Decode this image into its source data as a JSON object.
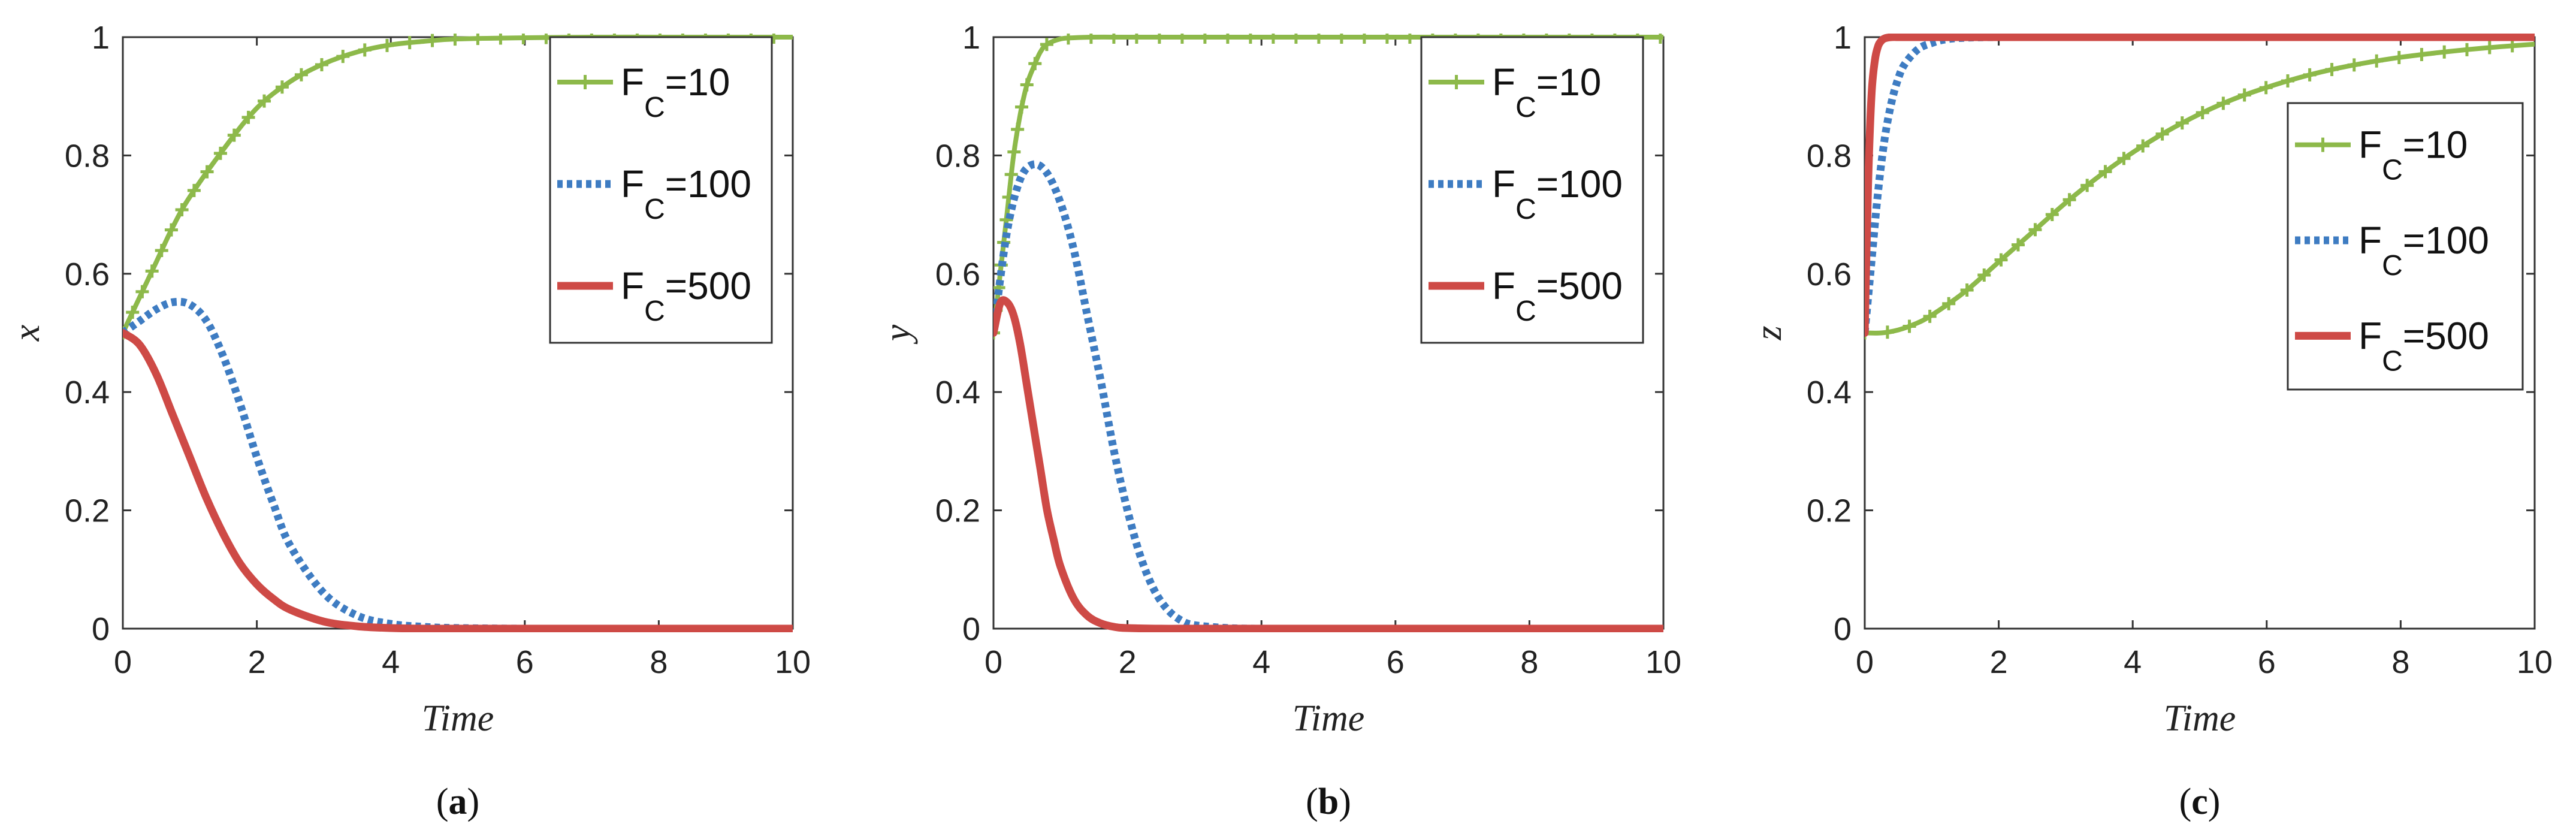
{
  "colors": {
    "green": "#8DB94A",
    "blue": "#3E7CC2",
    "red": "#CE4A46",
    "axis": "#333333",
    "background": "#ffffff"
  },
  "legend_entries": [
    {
      "prefix": "F",
      "subscript": "C",
      "suffix": "=10",
      "style": "solid-plus",
      "color": "#8DB94A"
    },
    {
      "prefix": "F",
      "subscript": "C",
      "suffix": "=100",
      "style": "dotted",
      "color": "#3E7CC2"
    },
    {
      "prefix": "F",
      "subscript": "C",
      "suffix": "=500",
      "style": "solid-thick",
      "color": "#CE4A46"
    }
  ],
  "chart_data": [
    {
      "type": "line",
      "panel_label": "a",
      "xlabel": "Time",
      "ylabel": "x",
      "xlim": [
        0,
        10
      ],
      "ylim": [
        0,
        1
      ],
      "xticks": [
        "0",
        "2",
        "4",
        "6",
        "8",
        "10"
      ],
      "yticks": [
        "0",
        "0.2",
        "0.4",
        "0.6",
        "0.8",
        "1"
      ],
      "legend_position": "top-right",
      "series": [
        {
          "name": "F_C=10",
          "x": [
            0,
            0.25,
            0.5,
            0.75,
            1,
            1.5,
            2,
            2.5,
            3,
            3.5,
            4,
            4.5,
            5,
            6,
            7,
            8,
            9,
            10
          ],
          "y": [
            0.5,
            0.56,
            0.62,
            0.68,
            0.73,
            0.81,
            0.88,
            0.925,
            0.955,
            0.975,
            0.987,
            0.993,
            0.997,
            0.999,
            1,
            1,
            1,
            1
          ]
        },
        {
          "name": "F_C=100",
          "x": [
            0,
            0.25,
            0.5,
            0.75,
            1,
            1.25,
            1.5,
            1.75,
            2,
            2.25,
            2.5,
            3,
            3.5,
            4,
            4.5,
            5,
            6,
            7,
            8,
            9,
            10
          ],
          "y": [
            0.5,
            0.52,
            0.54,
            0.552,
            0.548,
            0.52,
            0.46,
            0.38,
            0.29,
            0.21,
            0.14,
            0.06,
            0.022,
            0.008,
            0.003,
            0.001,
            0,
            0,
            0,
            0,
            0
          ]
        },
        {
          "name": "F_C=500",
          "x": [
            0,
            0.25,
            0.5,
            0.75,
            1,
            1.25,
            1.5,
            1.75,
            2,
            2.25,
            2.5,
            3,
            3.5,
            4,
            4.5,
            5,
            6,
            7,
            8,
            9,
            10
          ],
          "y": [
            0.5,
            0.48,
            0.43,
            0.36,
            0.29,
            0.22,
            0.16,
            0.11,
            0.075,
            0.05,
            0.032,
            0.012,
            0.004,
            0.001,
            0,
            0,
            0,
            0,
            0,
            0,
            0
          ]
        }
      ]
    },
    {
      "type": "line",
      "panel_label": "b",
      "xlabel": "Time",
      "ylabel": "y",
      "xlim": [
        0,
        10
      ],
      "ylim": [
        0,
        1
      ],
      "xticks": [
        "0",
        "2",
        "4",
        "6",
        "8",
        "10"
      ],
      "yticks": [
        "0",
        "0.2",
        "0.4",
        "0.6",
        "0.8",
        "1"
      ],
      "legend_position": "top-right",
      "series": [
        {
          "name": "F_C=10",
          "x": [
            0,
            0.1,
            0.2,
            0.3,
            0.4,
            0.5,
            0.6,
            0.7,
            0.8,
            1,
            1.2,
            1.5,
            2,
            3,
            4,
            5,
            6,
            7,
            8,
            9,
            10
          ],
          "y": [
            0.5,
            0.6,
            0.7,
            0.8,
            0.87,
            0.92,
            0.95,
            0.975,
            0.988,
            0.997,
            0.999,
            1,
            1,
            1,
            1,
            1,
            1,
            1,
            1,
            1,
            1
          ]
        },
        {
          "name": "F_C=100",
          "x": [
            0,
            0.2,
            0.4,
            0.6,
            0.8,
            1,
            1.2,
            1.4,
            1.6,
            1.8,
            2,
            2.2,
            2.4,
            2.6,
            2.8,
            3,
            3.5,
            4,
            5,
            6,
            8,
            10
          ],
          "y": [
            0.5,
            0.67,
            0.76,
            0.785,
            0.77,
            0.72,
            0.64,
            0.53,
            0.42,
            0.3,
            0.2,
            0.12,
            0.065,
            0.032,
            0.014,
            0.006,
            0.001,
            0,
            0,
            0,
            0,
            0
          ]
        },
        {
          "name": "F_C=500",
          "x": [
            0,
            0.1,
            0.2,
            0.3,
            0.4,
            0.5,
            0.6,
            0.7,
            0.8,
            0.9,
            1,
            1.2,
            1.4,
            1.6,
            1.8,
            2,
            2.5,
            3,
            4,
            6,
            8,
            10
          ],
          "y": [
            0.5,
            0.55,
            0.552,
            0.53,
            0.48,
            0.41,
            0.34,
            0.27,
            0.2,
            0.15,
            0.105,
            0.05,
            0.022,
            0.009,
            0.003,
            0.001,
            0,
            0,
            0,
            0,
            0,
            0
          ]
        }
      ]
    },
    {
      "type": "line",
      "panel_label": "c",
      "xlabel": "Time",
      "ylabel": "z",
      "xlim": [
        0,
        10
      ],
      "ylim": [
        0,
        1
      ],
      "xticks": [
        "0",
        "2",
        "4",
        "6",
        "8",
        "10"
      ],
      "yticks": [
        "0",
        "0.2",
        "0.4",
        "0.6",
        "0.8",
        "1"
      ],
      "legend_position": "right",
      "series": [
        {
          "name": "F_C=10",
          "x": [
            0,
            0.25,
            0.5,
            0.75,
            1,
            1.5,
            2,
            2.5,
            3,
            3.5,
            4,
            4.5,
            5,
            5.5,
            6,
            6.5,
            7,
            7.5,
            8,
            8.5,
            9,
            9.5,
            10
          ],
          "y": [
            0.5,
            0.5,
            0.505,
            0.515,
            0.53,
            0.57,
            0.62,
            0.67,
            0.72,
            0.765,
            0.805,
            0.84,
            0.87,
            0.895,
            0.915,
            0.932,
            0.946,
            0.957,
            0.966,
            0.973,
            0.979,
            0.984,
            0.988
          ]
        },
        {
          "name": "F_C=100",
          "x": [
            0,
            0.1,
            0.2,
            0.3,
            0.4,
            0.5,
            0.6,
            0.8,
            1,
            1.2,
            1.5,
            2,
            3,
            4,
            6,
            8,
            10
          ],
          "y": [
            0.5,
            0.62,
            0.74,
            0.83,
            0.89,
            0.93,
            0.955,
            0.98,
            0.99,
            0.996,
            0.999,
            1,
            1,
            1,
            1,
            1,
            1
          ]
        },
        {
          "name": "F_C=500",
          "x": [
            0,
            0.05,
            0.1,
            0.15,
            0.2,
            0.25,
            0.3,
            0.4,
            0.5,
            0.75,
            1,
            2,
            4,
            6,
            8,
            10
          ],
          "y": [
            0.5,
            0.75,
            0.9,
            0.96,
            0.985,
            0.994,
            0.998,
            1,
            1,
            1,
            1,
            1,
            1,
            1,
            1,
            1
          ]
        }
      ]
    }
  ]
}
